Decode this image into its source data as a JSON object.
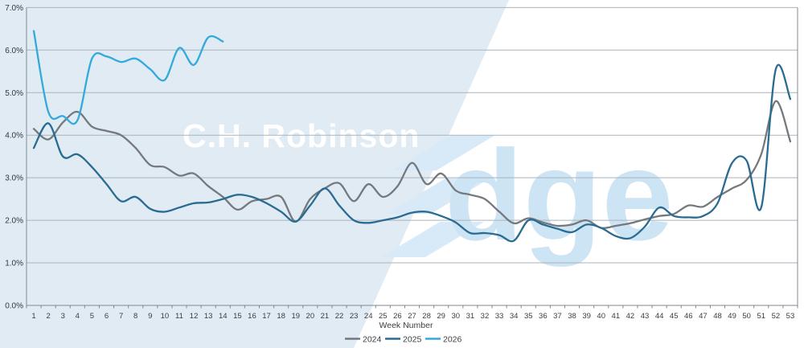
{
  "watermark": {
    "brand": "C.H. Robinson",
    "product_suffix": "dge"
  },
  "colors": {
    "background_left": "#e0ebf4",
    "background_right": "#ffffff",
    "watermark_text": "#cde4f5",
    "edge_bar": "#d8eaf8",
    "grid": "#a9b3bb",
    "axis": "#7e8890",
    "label": "#33373b"
  },
  "chart_data": {
    "type": "line",
    "title": "",
    "xlabel": "Week Number",
    "ylabel": "",
    "ylim": [
      0,
      7
    ],
    "grid": true,
    "legend_position": "bottom-center",
    "yticks": [
      "0.0%",
      "1.0%",
      "2.0%",
      "3.0%",
      "4.0%",
      "5.0%",
      "6.0%",
      "7.0%"
    ],
    "x": [
      1,
      2,
      3,
      4,
      5,
      6,
      7,
      8,
      9,
      10,
      11,
      12,
      13,
      14,
      15,
      16,
      17,
      18,
      19,
      20,
      21,
      22,
      23,
      24,
      25,
      26,
      27,
      28,
      29,
      30,
      31,
      32,
      33,
      34,
      35,
      36,
      37,
      38,
      39,
      40,
      41,
      42,
      43,
      44,
      45,
      46,
      47,
      48,
      49,
      50,
      51,
      52,
      53
    ],
    "series": [
      {
        "name": "2024",
        "color": "#75787c",
        "values": [
          4.15,
          3.9,
          4.3,
          4.55,
          4.2,
          4.1,
          4.0,
          3.7,
          3.3,
          3.25,
          3.05,
          3.1,
          2.8,
          2.55,
          2.25,
          2.45,
          2.5,
          2.55,
          1.97,
          2.5,
          2.75,
          2.87,
          2.45,
          2.85,
          2.55,
          2.8,
          3.35,
          2.85,
          3.1,
          2.7,
          2.6,
          2.5,
          2.2,
          1.93,
          2.05,
          1.95,
          1.87,
          1.9,
          2.0,
          1.82,
          1.87,
          1.93,
          2.02,
          2.1,
          2.15,
          2.35,
          2.32,
          2.55,
          2.75,
          2.95,
          3.55,
          4.8,
          3.85
        ]
      },
      {
        "name": "2025",
        "color": "#2a6b92",
        "values": [
          3.7,
          4.28,
          3.5,
          3.55,
          3.25,
          2.85,
          2.45,
          2.55,
          2.27,
          2.2,
          2.3,
          2.4,
          2.42,
          2.5,
          2.6,
          2.55,
          2.4,
          2.2,
          1.97,
          2.35,
          2.75,
          2.35,
          2.0,
          1.94,
          2.0,
          2.07,
          2.18,
          2.2,
          2.1,
          1.95,
          1.7,
          1.7,
          1.65,
          1.52,
          2.0,
          1.9,
          1.8,
          1.72,
          1.9,
          1.82,
          1.63,
          1.58,
          1.85,
          2.3,
          2.1,
          2.07,
          2.1,
          2.4,
          3.35,
          3.4,
          2.3,
          5.55,
          4.85
        ]
      },
      {
        "name": "2026",
        "color": "#33a9dc",
        "values": [
          6.45,
          4.55,
          4.45,
          4.35,
          5.8,
          5.85,
          5.72,
          5.8,
          5.55,
          5.3,
          6.05,
          5.65,
          6.3,
          6.2
        ]
      }
    ]
  }
}
